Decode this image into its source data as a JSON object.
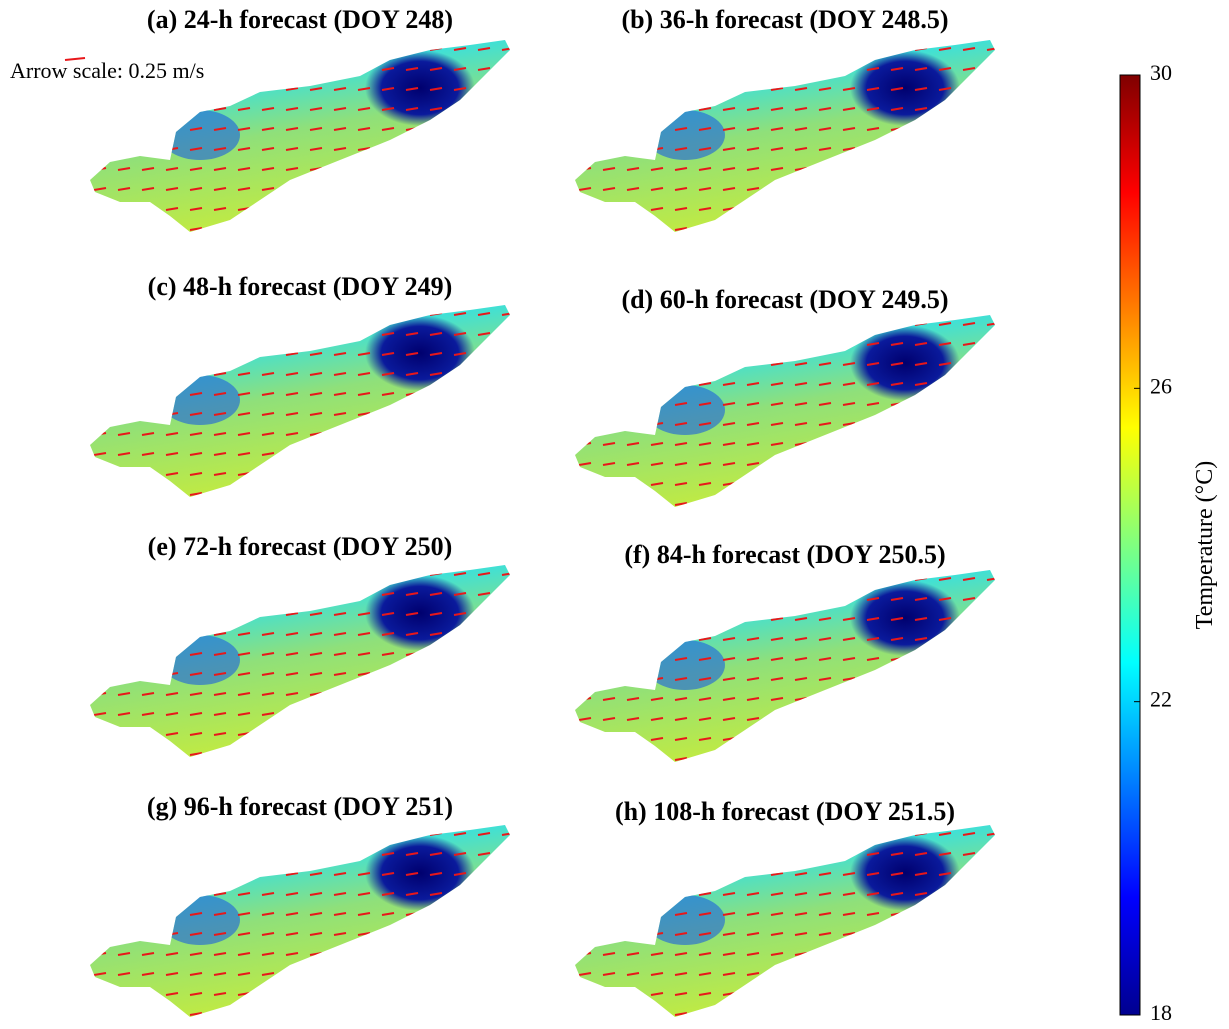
{
  "panels": [
    {
      "title": "(a) 24-h forecast (DOY 248)"
    },
    {
      "title": "(b) 36-h forecast (DOY 248.5)"
    },
    {
      "title": "(c) 48-h forecast (DOY 249)"
    },
    {
      "title": "(d) 60-h forecast (DOY 249.5)"
    },
    {
      "title": "(e) 72-h forecast (DOY 250)"
    },
    {
      "title": "(f) 84-h forecast (DOY 250.5)"
    },
    {
      "title": "(g) 96-h forecast (DOY 251)"
    },
    {
      "title": "(h) 108-h forecast (DOY 251.5)"
    }
  ],
  "arrow_scale": "Arrow scale: 0.25 m/s",
  "colorbar": {
    "label": "Temperature (°C)",
    "lim": [
      18,
      30
    ],
    "ticks": [
      18,
      22,
      26,
      30
    ]
  }
}
